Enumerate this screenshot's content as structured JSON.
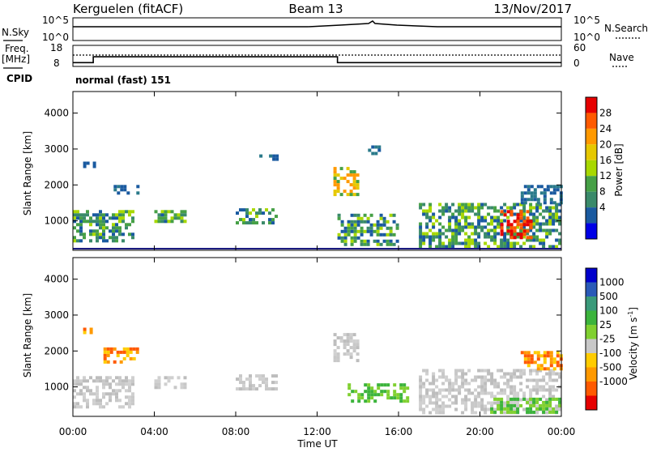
{
  "header": {
    "station": "Kerguelen (fitACF)",
    "beam": "Beam 13",
    "date": "13/Nov/2017"
  },
  "panels": {
    "nsky": {
      "left_label": "N.Sky",
      "tick_top": "10^5",
      "tick_bottom": "10^0",
      "right_tick_top": "10^5",
      "right_tick_bottom": "10^0",
      "right_label": "N.Search"
    },
    "freq": {
      "left_label_1": "Freq.",
      "left_label_2": "[MHz]",
      "tick_top": "18",
      "tick_bottom": "8",
      "right_tick_top": "60",
      "right_tick_bottom": "0",
      "right_label": "Nave",
      "cpid_label": "CPID"
    },
    "mode_text": "normal (fast) 151"
  },
  "xaxis": {
    "label": "Time UT",
    "ticks": [
      "00:00",
      "04:00",
      "08:00",
      "12:00",
      "16:00",
      "20:00",
      "00:00"
    ]
  },
  "power_panel": {
    "ylabel": "Slant Range [km]",
    "yticks": [
      "4000",
      "3000",
      "2000",
      "1000"
    ],
    "colorbar_label": "Power [dB]",
    "colorbar_ticks": [
      "28",
      "24",
      "20",
      "16",
      "12",
      "8",
      "4"
    ],
    "colorbar_colors": [
      "#e60000",
      "#ff5a00",
      "#ff9900",
      "#e6c800",
      "#a8d800",
      "#46a046",
      "#3a8a6a",
      "#1a5aa0",
      "#0000e6"
    ]
  },
  "velocity_panel": {
    "ylabel": "Slant Range [km]",
    "yticks": [
      "4000",
      "3000",
      "2000",
      "1000"
    ],
    "colorbar_label": "Velocity [m s",
    "colorbar_label_sup": "-1",
    "colorbar_label_end": "]",
    "colorbar_ticks": [
      "1000",
      "500",
      "100",
      "25",
      "-25",
      "-100",
      "-500",
      "-1000"
    ],
    "colorbar_colors": [
      "#0000cc",
      "#2a5ab8",
      "#3a9a7a",
      "#3cb43c",
      "#80d030",
      "#c8c8c8",
      "#ffcc00",
      "#ff9900",
      "#ff5a00",
      "#e60000"
    ]
  },
  "chart_data": {
    "type": "heatmap",
    "x_range_hours": [
      0,
      24
    ],
    "y_range_km": [
      180,
      4600
    ],
    "freq_mhz": [
      {
        "from_h": 0,
        "to_h": 1.0,
        "value": 9.8
      },
      {
        "from_h": 1.0,
        "to_h": 13.0,
        "value": 12.6
      },
      {
        "from_h": 13.0,
        "to_h": 24,
        "value": 9.8
      }
    ],
    "nave_level": 40,
    "power_regions": [
      {
        "t0": 0.0,
        "t1": 3.0,
        "r0": 400,
        "r1": 1300,
        "level": "mid"
      },
      {
        "t0": 0.5,
        "t1": 1.0,
        "r0": 2500,
        "r1": 2650,
        "level": "low"
      },
      {
        "t0": 2.0,
        "t1": 3.2,
        "r0": 1800,
        "r1": 2000,
        "level": "low"
      },
      {
        "t0": 4.0,
        "t1": 5.5,
        "r0": 1000,
        "r1": 1300,
        "level": "mid"
      },
      {
        "t0": 8.0,
        "t1": 10.0,
        "r0": 900,
        "r1": 1350,
        "level": "mid"
      },
      {
        "t0": 9.0,
        "t1": 10.0,
        "r0": 2700,
        "r1": 2850,
        "level": "low"
      },
      {
        "t0": 12.8,
        "t1": 14.0,
        "r0": 1700,
        "r1": 2500,
        "level": "high"
      },
      {
        "t0": 13.0,
        "t1": 16.0,
        "r0": 300,
        "r1": 1200,
        "level": "mid"
      },
      {
        "t0": 14.5,
        "t1": 15.0,
        "r0": 2900,
        "r1": 3100,
        "level": "low"
      },
      {
        "t0": 17.0,
        "t1": 24.0,
        "r0": 250,
        "r1": 1500,
        "level": "mid"
      },
      {
        "t0": 21.0,
        "t1": 22.5,
        "r0": 500,
        "r1": 1300,
        "level": "peak"
      },
      {
        "t0": 22.0,
        "t1": 24.0,
        "r0": 1500,
        "r1": 2000,
        "level": "low"
      }
    ],
    "velocity_regions": [
      {
        "t0": 0.0,
        "t1": 3.0,
        "r0": 400,
        "r1": 1300,
        "level": "zero"
      },
      {
        "t0": 0.5,
        "t1": 1.0,
        "r0": 2500,
        "r1": 2650,
        "level": "negative"
      },
      {
        "t0": 1.5,
        "t1": 3.2,
        "r0": 1700,
        "r1": 2100,
        "level": "negative"
      },
      {
        "t0": 4.0,
        "t1": 5.5,
        "r0": 1000,
        "r1": 1300,
        "level": "zero"
      },
      {
        "t0": 8.0,
        "t1": 10.0,
        "r0": 900,
        "r1": 1350,
        "level": "zero"
      },
      {
        "t0": 12.8,
        "t1": 14.0,
        "r0": 1700,
        "r1": 2500,
        "level": "zero"
      },
      {
        "t0": 13.5,
        "t1": 16.5,
        "r0": 600,
        "r1": 1100,
        "level": "positive"
      },
      {
        "t0": 17.0,
        "t1": 24.0,
        "r0": 250,
        "r1": 1500,
        "level": "zero"
      },
      {
        "t0": 20.5,
        "t1": 24.0,
        "r0": 300,
        "r1": 700,
        "level": "positive"
      },
      {
        "t0": 22.0,
        "t1": 24.0,
        "r0": 1500,
        "r1": 2000,
        "level": "negative"
      }
    ]
  }
}
